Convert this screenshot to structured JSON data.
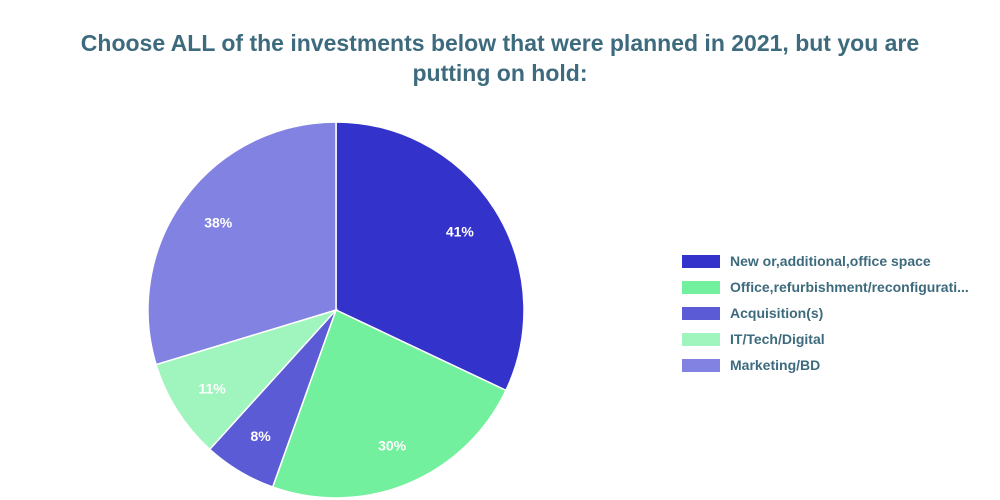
{
  "chart_data": {
    "type": "pie",
    "title": "Choose ALL of the investments below that were planned in 2021, but you are putting on hold:",
    "slices": [
      {
        "label": "New or,additional,office space",
        "value": 41,
        "display": "41%",
        "color": "#3333cc"
      },
      {
        "label": "Office,refurbishment/reconfigurati...",
        "value": 30,
        "display": "30%",
        "color": "#73f09d"
      },
      {
        "label": "Acquisition(s)",
        "value": 8,
        "display": "8%",
        "color": "#5b5bd6"
      },
      {
        "label": "IT/Tech/Digital",
        "value": 11,
        "display": "11%",
        "color": "#9ff5bd"
      },
      {
        "label": "Marketing/BD",
        "value": 38,
        "display": "38%",
        "color": "#8282e3"
      }
    ],
    "legend_position": "right"
  }
}
